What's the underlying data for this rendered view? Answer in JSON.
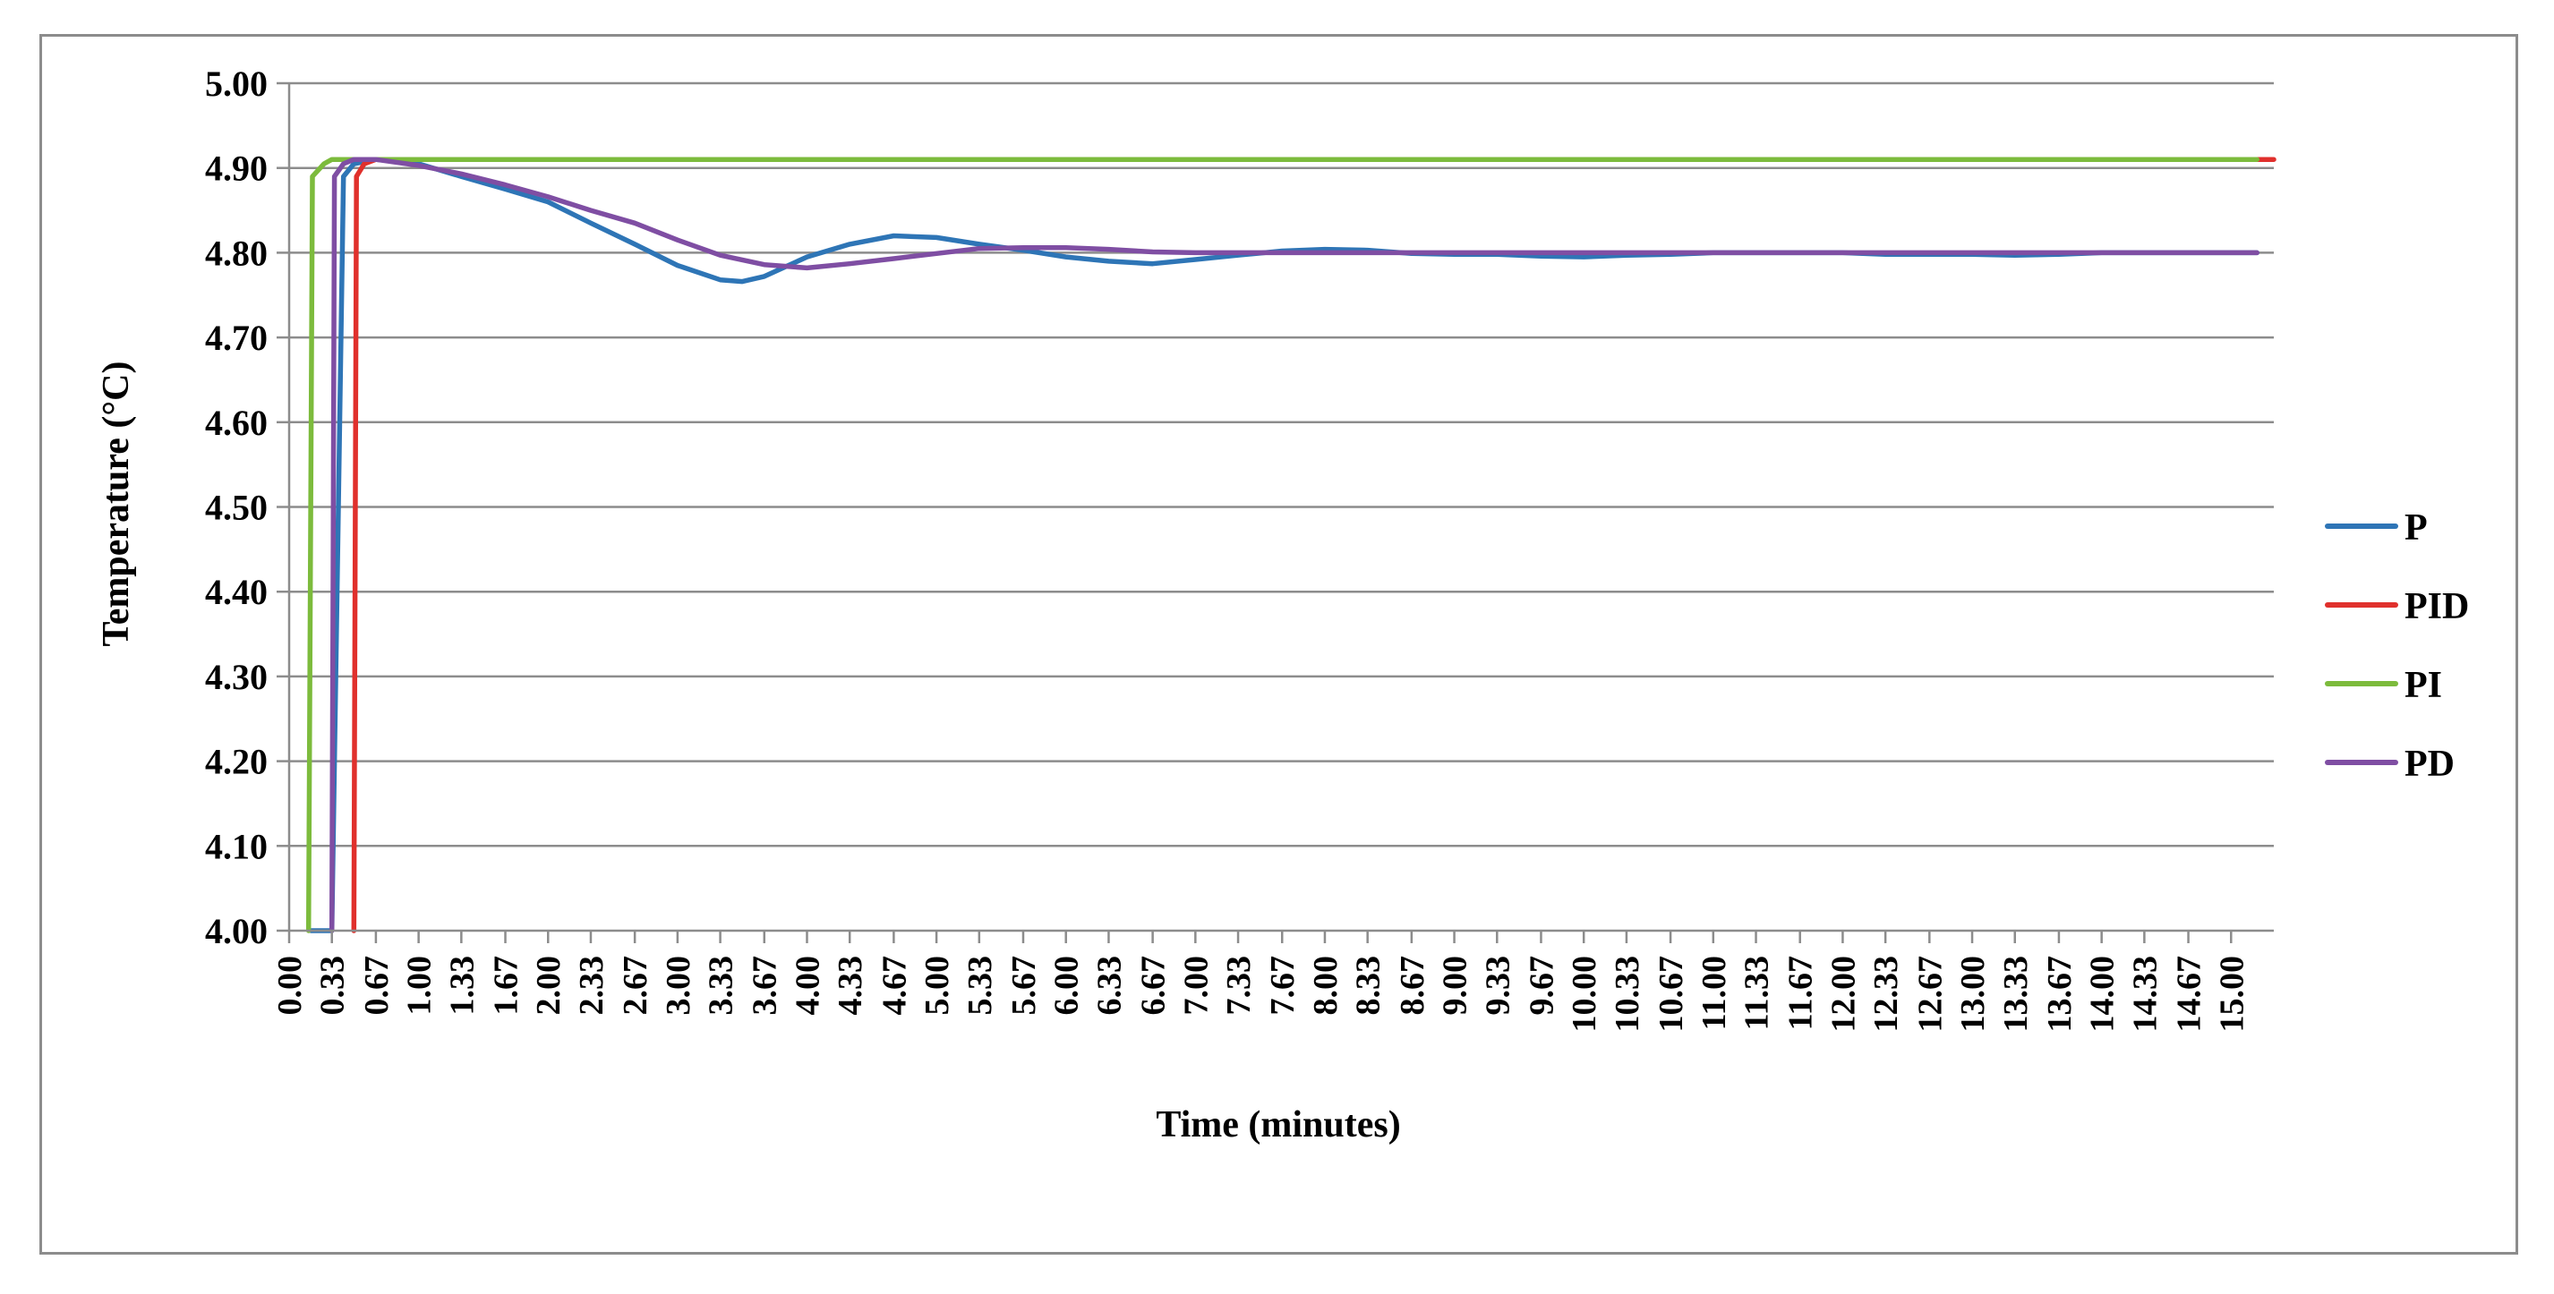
{
  "chart_data": {
    "type": "line",
    "title": "",
    "xlabel": "Time (minutes)",
    "ylabel": "Temperature (°C)",
    "xlim": [
      0,
      15.33
    ],
    "ylim": [
      4.0,
      5.0
    ],
    "y_ticks": [
      "4.00",
      "4.10",
      "4.20",
      "4.30",
      "4.40",
      "4.50",
      "4.60",
      "4.70",
      "4.80",
      "4.90",
      "5.00"
    ],
    "x_ticks": [
      "0.00",
      "0.33",
      "0.67",
      "1.00",
      "1.33",
      "1.67",
      "2.00",
      "2.33",
      "2.67",
      "3.00",
      "3.33",
      "3.67",
      "4.00",
      "4.33",
      "4.67",
      "5.00",
      "5.33",
      "5.67",
      "6.00",
      "6.33",
      "6.67",
      "7.00",
      "7.33",
      "7.67",
      "8.00",
      "8.33",
      "8.67",
      "9.00",
      "9.33",
      "9.67",
      "10.00",
      "10.33",
      "10.67",
      "11.00",
      "11.33",
      "11.67",
      "12.00",
      "12.33",
      "12.67",
      "13.00",
      "13.33",
      "13.67",
      "14.00",
      "14.33",
      "14.67",
      "15.00"
    ],
    "grid": true,
    "legend_position": "right",
    "series": [
      {
        "name": "P",
        "color": "#2e75b6",
        "x": [
          0.17,
          0.33,
          0.42,
          0.5,
          0.67,
          1.0,
          1.33,
          1.67,
          2.0,
          2.33,
          2.67,
          3.0,
          3.33,
          3.5,
          3.67,
          4.0,
          4.33,
          4.67,
          5.0,
          5.33,
          5.67,
          6.0,
          6.33,
          6.67,
          7.0,
          7.33,
          7.67,
          8.0,
          8.33,
          8.67,
          9.0,
          9.33,
          9.67,
          10.0,
          10.33,
          10.67,
          11.0,
          11.33,
          11.67,
          12.0,
          12.33,
          12.67,
          13.0,
          13.33,
          13.67,
          14.0,
          14.33,
          14.67,
          15.0,
          15.2
        ],
        "values": [
          4.0,
          4.0,
          4.89,
          4.905,
          4.91,
          4.905,
          4.89,
          4.875,
          4.86,
          4.835,
          4.81,
          4.785,
          4.768,
          4.766,
          4.772,
          4.795,
          4.81,
          4.82,
          4.818,
          4.81,
          4.803,
          4.795,
          4.79,
          4.787,
          4.792,
          4.797,
          4.802,
          4.804,
          4.803,
          4.799,
          4.798,
          4.798,
          4.796,
          4.795,
          4.797,
          4.798,
          4.8,
          4.8,
          4.8,
          4.8,
          4.798,
          4.798,
          4.798,
          4.797,
          4.798,
          4.8,
          4.8,
          4.8,
          4.8,
          4.8
        ]
      },
      {
        "name": "PID",
        "color": "#e0302c",
        "x": [
          0.5,
          0.52,
          0.58,
          0.67,
          1.0,
          5.0,
          10.0,
          15.0,
          15.33
        ],
        "values": [
          4.0,
          4.89,
          4.905,
          4.91,
          4.91,
          4.91,
          4.91,
          4.91,
          4.91
        ]
      },
      {
        "name": "PI",
        "color": "#7cbb3c",
        "x": [
          0.15,
          0.18,
          0.27,
          0.33,
          0.5,
          1.0,
          5.0,
          10.0,
          15.0,
          15.2
        ],
        "values": [
          4.0,
          4.89,
          4.905,
          4.91,
          4.91,
          4.91,
          4.91,
          4.91,
          4.91,
          4.91
        ]
      },
      {
        "name": "PD",
        "color": "#7f4ea3",
        "x": [
          0.33,
          0.35,
          0.42,
          0.5,
          0.67,
          1.0,
          1.33,
          1.67,
          2.0,
          2.33,
          2.67,
          3.0,
          3.33,
          3.67,
          4.0,
          4.33,
          4.67,
          5.0,
          5.33,
          5.67,
          6.0,
          6.33,
          6.67,
          7.0,
          7.33,
          8.0,
          9.0,
          10.0,
          11.0,
          12.0,
          13.0,
          14.0,
          15.0,
          15.2
        ],
        "values": [
          4.0,
          4.89,
          4.905,
          4.91,
          4.91,
          4.903,
          4.893,
          4.88,
          4.866,
          4.85,
          4.835,
          4.815,
          4.797,
          4.786,
          4.782,
          4.787,
          4.793,
          4.799,
          4.805,
          4.806,
          4.806,
          4.804,
          4.801,
          4.8,
          4.8,
          4.8,
          4.8,
          4.8,
          4.8,
          4.8,
          4.8,
          4.8,
          4.8,
          4.8
        ]
      }
    ]
  }
}
